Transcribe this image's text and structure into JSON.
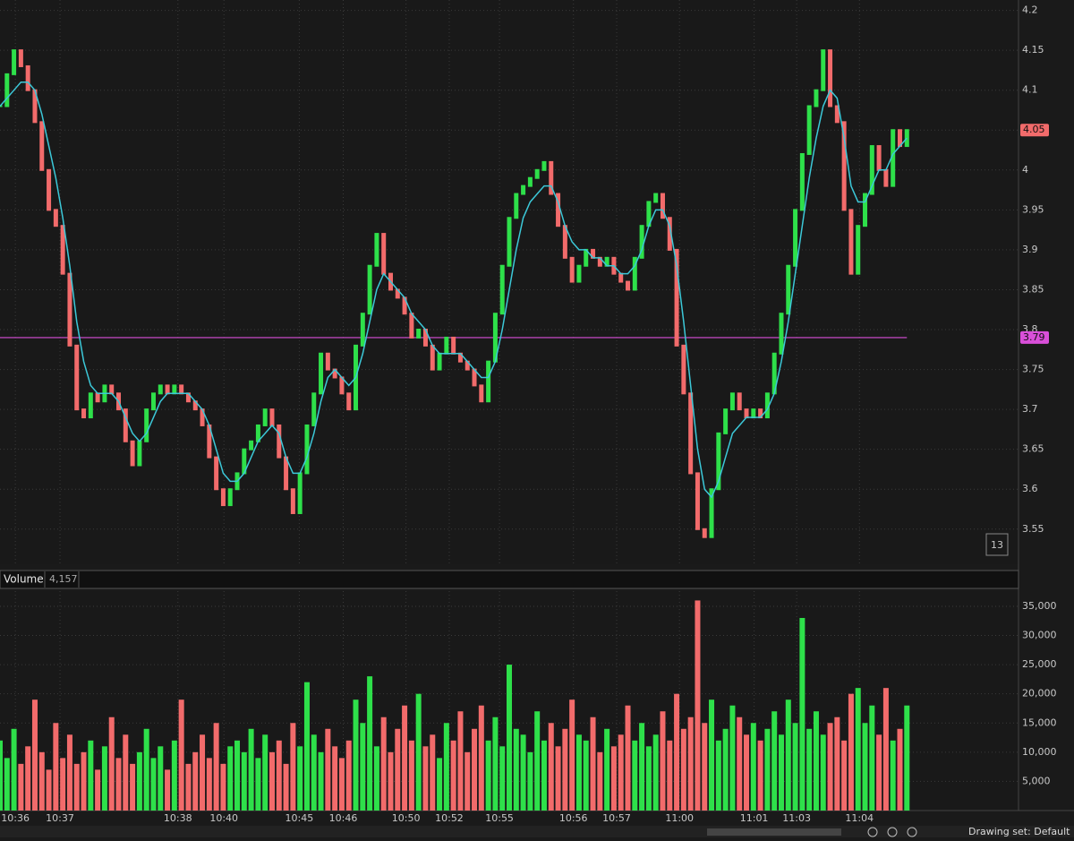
{
  "chart_data": [
    {
      "type": "candle-line",
      "values": [
        4.08,
        4.12,
        4.15,
        4.13,
        4.1,
        4.06,
        4.0,
        3.95,
        3.93,
        3.87,
        3.78,
        3.7,
        3.69,
        3.72,
        3.71,
        3.73,
        3.72,
        3.7,
        3.66,
        3.63,
        3.66,
        3.7,
        3.72,
        3.73,
        3.72,
        3.73,
        3.72,
        3.71,
        3.7,
        3.68,
        3.64,
        3.6,
        3.58,
        3.6,
        3.62,
        3.65,
        3.66,
        3.68,
        3.7,
        3.68,
        3.64,
        3.6,
        3.57,
        3.62,
        3.68,
        3.72,
        3.77,
        3.75,
        3.74,
        3.72,
        3.7,
        3.78,
        3.82,
        3.88,
        3.92,
        3.87,
        3.85,
        3.84,
        3.82,
        3.79,
        3.8,
        3.78,
        3.75,
        3.77,
        3.79,
        3.77,
        3.76,
        3.75,
        3.73,
        3.71,
        3.76,
        3.82,
        3.88,
        3.94,
        3.97,
        3.98,
        3.99,
        4.0,
        4.01,
        3.97,
        3.93,
        3.89,
        3.86,
        3.88,
        3.9,
        3.89,
        3.88,
        3.89,
        3.87,
        3.86,
        3.85,
        3.89,
        3.93,
        3.96,
        3.97,
        3.94,
        3.9,
        3.78,
        3.72,
        3.62,
        3.55,
        3.54,
        3.6,
        3.67,
        3.7,
        3.72,
        3.7,
        3.69,
        3.7,
        3.69,
        3.72,
        3.77,
        3.82,
        3.88,
        3.95,
        4.02,
        4.08,
        4.1,
        4.15,
        4.08,
        4.06,
        3.95,
        3.87,
        3.93,
        3.97,
        4.03,
        4.0,
        3.98,
        4.05,
        4.03,
        4.05
      ],
      "moving_average": {
        "color": "#3cc8d8",
        "values": [
          4.08,
          4.09,
          4.1,
          4.11,
          4.11,
          4.1,
          4.07,
          4.03,
          3.99,
          3.94,
          3.88,
          3.81,
          3.76,
          3.73,
          3.72,
          3.72,
          3.72,
          3.71,
          3.69,
          3.67,
          3.66,
          3.67,
          3.69,
          3.71,
          3.72,
          3.72,
          3.72,
          3.72,
          3.71,
          3.7,
          3.68,
          3.65,
          3.62,
          3.61,
          3.61,
          3.62,
          3.64,
          3.66,
          3.67,
          3.68,
          3.67,
          3.64,
          3.62,
          3.62,
          3.64,
          3.67,
          3.71,
          3.74,
          3.75,
          3.74,
          3.73,
          3.74,
          3.77,
          3.81,
          3.85,
          3.87,
          3.86,
          3.85,
          3.84,
          3.82,
          3.81,
          3.8,
          3.78,
          3.77,
          3.77,
          3.77,
          3.77,
          3.76,
          3.75,
          3.74,
          3.74,
          3.76,
          3.8,
          3.85,
          3.9,
          3.94,
          3.96,
          3.97,
          3.98,
          3.98,
          3.96,
          3.93,
          3.91,
          3.9,
          3.9,
          3.89,
          3.89,
          3.88,
          3.88,
          3.87,
          3.87,
          3.88,
          3.9,
          3.93,
          3.95,
          3.95,
          3.93,
          3.88,
          3.81,
          3.73,
          3.65,
          3.6,
          3.59,
          3.61,
          3.64,
          3.67,
          3.68,
          3.69,
          3.69,
          3.69,
          3.7,
          3.72,
          3.76,
          3.81,
          3.87,
          3.93,
          3.99,
          4.04,
          4.08,
          4.1,
          4.09,
          4.04,
          3.98,
          3.96,
          3.96,
          3.98,
          4.0,
          4.0,
          4.02,
          4.03,
          4.04
        ]
      },
      "reference_line": {
        "value": 3.79,
        "color": "#d94fd9"
      },
      "up_color": "#2ee04a",
      "down_color": "#f26b6b",
      "ylim": [
        3.506,
        4.213
      ],
      "yticks": [
        3.55,
        3.6,
        3.65,
        3.7,
        3.75,
        3.8,
        3.85,
        3.9,
        3.95,
        4,
        4.05,
        4.1,
        4.15,
        4.2
      ],
      "xlim": [
        0,
        146
      ],
      "xticks": [
        {
          "value": 2.2,
          "label": "10:36"
        },
        {
          "value": 8.6,
          "label": "10:37"
        },
        {
          "value": 25.5,
          "label": "10:38"
        },
        {
          "value": 32.1,
          "label": "10:40"
        },
        {
          "value": 42.9,
          "label": "10:45"
        },
        {
          "value": 49.2,
          "label": "10:46"
        },
        {
          "value": 58.2,
          "label": "10:50"
        },
        {
          "value": 64.4,
          "label": "10:52"
        },
        {
          "value": 71.6,
          "label": "10:55"
        },
        {
          "value": 82.2,
          "label": "10:56"
        },
        {
          "value": 88.4,
          "label": "10:57"
        },
        {
          "value": 97.4,
          "label": "11:00"
        },
        {
          "value": 108.1,
          "label": "11:01"
        },
        {
          "value": 114.2,
          "label": "11:03"
        },
        {
          "value": 123.2,
          "label": "11:04"
        }
      ],
      "badge": "13",
      "grid": true
    },
    {
      "type": "volume",
      "title": "Volume",
      "current_label": "4,157",
      "values": [
        12000,
        9000,
        14000,
        8000,
        11000,
        19000,
        10000,
        7000,
        15000,
        9000,
        13000,
        8000,
        10000,
        12000,
        7000,
        11000,
        16000,
        9000,
        13000,
        8000,
        10000,
        14000,
        9000,
        11000,
        7000,
        12000,
        19000,
        8000,
        10000,
        13000,
        9000,
        15000,
        8000,
        11000,
        12000,
        10000,
        14000,
        9000,
        13000,
        10000,
        12000,
        8000,
        15000,
        11000,
        22000,
        13000,
        10000,
        14000,
        11000,
        9000,
        12000,
        19000,
        15000,
        23000,
        11000,
        16000,
        10000,
        14000,
        18000,
        12000,
        20000,
        11000,
        13000,
        9000,
        15000,
        12000,
        17000,
        10000,
        14000,
        18000,
        12000,
        16000,
        11000,
        25000,
        14000,
        13000,
        10000,
        17000,
        12000,
        15000,
        11000,
        14000,
        19000,
        13000,
        12000,
        16000,
        10000,
        14000,
        11000,
        13000,
        18000,
        12000,
        15000,
        11000,
        13000,
        17000,
        12000,
        20000,
        14000,
        16000,
        36000,
        15000,
        19000,
        12000,
        14000,
        18000,
        16000,
        13000,
        15000,
        12000,
        14000,
        17000,
        13000,
        19000,
        15000,
        33000,
        14000,
        17000,
        13000,
        15000,
        16000,
        12000,
        20000,
        21000,
        15000,
        18000,
        13000,
        21000,
        12000,
        14000,
        18000
      ],
      "ylim": [
        0,
        37600
      ],
      "yticks": [
        {
          "value": 5000,
          "label": "5,000"
        },
        {
          "value": 10000,
          "label": "10,000"
        },
        {
          "value": 15000,
          "label": "15,000"
        },
        {
          "value": 20000,
          "label": "20,000"
        },
        {
          "value": 25000,
          "label": "25,000"
        },
        {
          "value": 30000,
          "label": "30,000"
        },
        {
          "value": 35000,
          "label": "35,000"
        }
      ],
      "grid": true
    }
  ],
  "toolbar": {
    "drawing_set": "Drawing set: Default"
  }
}
